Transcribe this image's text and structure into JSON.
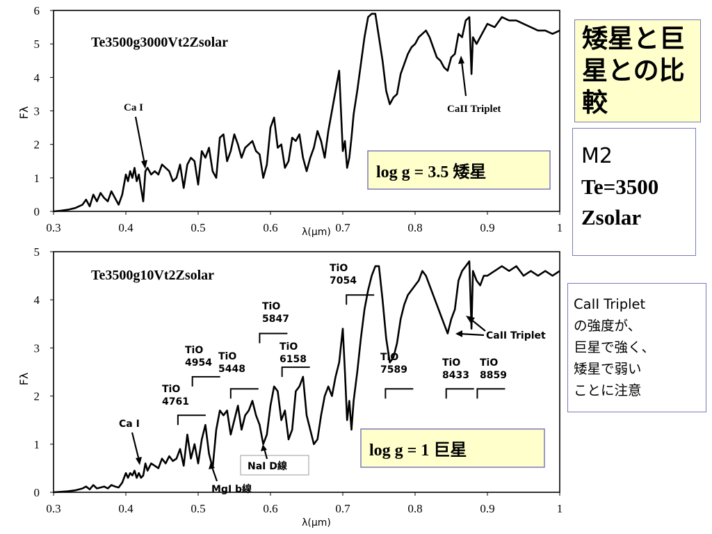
{
  "sidebar": {
    "title_lines": [
      "矮星と巨",
      "星との比",
      "較"
    ],
    "info_lines": [
      "M2",
      "Te=3500",
      "Zsolar"
    ],
    "note_lines": [
      "CaII  Triplet",
      "の強度が、",
      "巨星で強く、",
      "矮星で弱い",
      "ことに注意"
    ]
  },
  "colors": {
    "title_bg": "#ffffcc",
    "box_border": "#7a78b8",
    "line": "#000000"
  },
  "chart_data": [
    {
      "type": "line",
      "title": "Te3500g3000Vt2Zsolar",
      "xlabel": "λ(μm)",
      "ylabel": "Fλ",
      "xlim": [
        0.3,
        1.0
      ],
      "ylim": [
        0,
        6
      ],
      "xticks": [
        "0.3",
        "0.4",
        "0.5",
        "0.6",
        "0.7",
        "0.8",
        "0.9",
        "1"
      ],
      "yticks": [
        "0",
        "1",
        "2",
        "3",
        "4",
        "5",
        "6"
      ],
      "grid": false,
      "badge": "log g = 3.5  矮星",
      "annotations": [
        {
          "text": "Ca I",
          "x": 0.43,
          "y": 1.35
        },
        {
          "text": "CaII Triplet",
          "x": 0.87,
          "y": 4.4
        }
      ],
      "series": [
        {
          "x": [
            0.3,
            0.31,
            0.32,
            0.33,
            0.34,
            0.345,
            0.35,
            0.355,
            0.36,
            0.365,
            0.37,
            0.375,
            0.38,
            0.385,
            0.39,
            0.395,
            0.4,
            0.403,
            0.406,
            0.409,
            0.412,
            0.415,
            0.418,
            0.421,
            0.424,
            0.427,
            0.43,
            0.435,
            0.44,
            0.445,
            0.45,
            0.455,
            0.46,
            0.465,
            0.47,
            0.475,
            0.48,
            0.485,
            0.49,
            0.495,
            0.5,
            0.505,
            0.51,
            0.515,
            0.52,
            0.525,
            0.53,
            0.535,
            0.54,
            0.545,
            0.55,
            0.555,
            0.56,
            0.565,
            0.57,
            0.575,
            0.58,
            0.585,
            0.59,
            0.595,
            0.6,
            0.605,
            0.61,
            0.615,
            0.62,
            0.625,
            0.63,
            0.635,
            0.64,
            0.645,
            0.65,
            0.655,
            0.66,
            0.665,
            0.67,
            0.675,
            0.68,
            0.685,
            0.69,
            0.695,
            0.7,
            0.703,
            0.706,
            0.709,
            0.712,
            0.715,
            0.72,
            0.725,
            0.73,
            0.735,
            0.74,
            0.745,
            0.75,
            0.755,
            0.76,
            0.765,
            0.77,
            0.775,
            0.78,
            0.785,
            0.79,
            0.795,
            0.8,
            0.805,
            0.81,
            0.815,
            0.82,
            0.825,
            0.83,
            0.835,
            0.84,
            0.845,
            0.85,
            0.855,
            0.86,
            0.865,
            0.87,
            0.875,
            0.878,
            0.88,
            0.885,
            0.89,
            0.895,
            0.9,
            0.91,
            0.92,
            0.93,
            0.94,
            0.95,
            0.96,
            0.97,
            0.98,
            0.99,
            1.0
          ],
          "y": [
            0.0,
            0.02,
            0.05,
            0.1,
            0.2,
            0.35,
            0.15,
            0.5,
            0.3,
            0.55,
            0.4,
            0.3,
            0.6,
            0.4,
            0.2,
            0.5,
            1.1,
            0.9,
            1.2,
            1.0,
            1.3,
            0.9,
            1.1,
            0.7,
            0.3,
            1.2,
            1.3,
            1.1,
            1.2,
            1.1,
            1.4,
            1.3,
            1.2,
            0.9,
            1.0,
            1.4,
            0.7,
            1.4,
            1.6,
            1.5,
            0.8,
            1.8,
            1.6,
            1.9,
            1.2,
            1.0,
            2.2,
            2.3,
            1.5,
            1.8,
            2.3,
            2.0,
            1.6,
            1.9,
            2.0,
            2.1,
            1.8,
            1.7,
            1.0,
            1.4,
            2.5,
            2.8,
            1.9,
            2.0,
            1.3,
            1.5,
            2.2,
            2.1,
            2.3,
            1.6,
            1.2,
            1.6,
            1.9,
            2.4,
            2.1,
            1.6,
            2.4,
            3.0,
            3.6,
            4.2,
            1.8,
            2.1,
            1.3,
            1.6,
            2.2,
            2.9,
            3.6,
            4.4,
            5.2,
            5.8,
            5.9,
            5.9,
            5.2,
            4.5,
            3.6,
            3.2,
            3.4,
            3.5,
            4.1,
            4.4,
            4.7,
            4.9,
            5.0,
            5.2,
            5.3,
            5.4,
            5.2,
            4.9,
            4.6,
            4.5,
            4.3,
            4.2,
            4.6,
            4.7,
            5.3,
            5.2,
            5.7,
            5.8,
            4.1,
            5.2,
            5.0,
            5.2,
            5.4,
            5.6,
            5.5,
            5.8,
            5.7,
            5.7,
            5.6,
            5.5,
            5.4,
            5.4,
            5.3,
            5.4
          ]
        }
      ]
    },
    {
      "type": "line",
      "title": "Te3500g10Vt2Zsolar",
      "xlabel": "λ(μm)",
      "ylabel": "Fλ",
      "xlim": [
        0.3,
        1.0
      ],
      "ylim": [
        0,
        5
      ],
      "xticks": [
        "0.3",
        "0.4",
        "0.5",
        "0.6",
        "0.7",
        "0.8",
        "0.9",
        "1"
      ],
      "yticks": [
        "0",
        "1",
        "2",
        "3",
        "4",
        "5"
      ],
      "grid": false,
      "badge": "log g = 1  巨星",
      "band_labels": [
        {
          "text": [
            "TiO",
            "4761"
          ],
          "edge": 0.472,
          "level": 1.6
        },
        {
          "text": [
            "TiO",
            "4954"
          ],
          "edge": 0.492,
          "level": 2.4
        },
        {
          "text": [
            "TiO",
            "5448"
          ],
          "edge": 0.545,
          "level": 2.15
        },
        {
          "text": [
            "TiO",
            "5847"
          ],
          "edge": 0.585,
          "level": 3.3
        },
        {
          "text": [
            "TiO",
            "6158"
          ],
          "edge": 0.616,
          "level": 2.6
        },
        {
          "text": [
            "TiO",
            "7054"
          ],
          "edge": 0.705,
          "level": 4.1
        },
        {
          "text": [
            "TiO",
            "7589"
          ],
          "edge": 0.759,
          "level": 2.15
        },
        {
          "text": [
            "TiO",
            "8433"
          ],
          "edge": 0.843,
          "level": 2.15
        },
        {
          "text": [
            "TiO",
            "8859"
          ],
          "edge": 0.886,
          "level": 2.15
        }
      ],
      "annotations": [
        {
          "text": "Ca I",
          "x": 0.42,
          "y": 0.55
        },
        {
          "text": "MgI  b線",
          "x": 0.517,
          "y": 0.55
        },
        {
          "text": "NaI  D線",
          "x": 0.589,
          "y": 0.92
        },
        {
          "text": "CaII Triplet",
          "x": 0.866,
          "y": 3.3
        }
      ],
      "series": [
        {
          "x": [
            0.3,
            0.31,
            0.32,
            0.33,
            0.34,
            0.345,
            0.35,
            0.355,
            0.36,
            0.365,
            0.37,
            0.375,
            0.38,
            0.385,
            0.39,
            0.395,
            0.4,
            0.403,
            0.406,
            0.409,
            0.412,
            0.415,
            0.418,
            0.421,
            0.424,
            0.427,
            0.43,
            0.435,
            0.44,
            0.445,
            0.45,
            0.455,
            0.46,
            0.465,
            0.47,
            0.475,
            0.48,
            0.485,
            0.49,
            0.495,
            0.5,
            0.505,
            0.51,
            0.515,
            0.52,
            0.525,
            0.53,
            0.535,
            0.54,
            0.545,
            0.55,
            0.555,
            0.56,
            0.565,
            0.57,
            0.575,
            0.58,
            0.585,
            0.59,
            0.595,
            0.6,
            0.605,
            0.61,
            0.615,
            0.62,
            0.625,
            0.63,
            0.635,
            0.64,
            0.645,
            0.65,
            0.655,
            0.66,
            0.665,
            0.67,
            0.675,
            0.68,
            0.685,
            0.69,
            0.695,
            0.7,
            0.703,
            0.706,
            0.709,
            0.712,
            0.715,
            0.72,
            0.725,
            0.73,
            0.735,
            0.74,
            0.745,
            0.75,
            0.755,
            0.76,
            0.765,
            0.77,
            0.775,
            0.78,
            0.785,
            0.79,
            0.795,
            0.8,
            0.805,
            0.81,
            0.815,
            0.82,
            0.825,
            0.83,
            0.835,
            0.84,
            0.845,
            0.85,
            0.855,
            0.86,
            0.865,
            0.87,
            0.875,
            0.878,
            0.88,
            0.885,
            0.89,
            0.895,
            0.9,
            0.91,
            0.92,
            0.93,
            0.94,
            0.95,
            0.96,
            0.97,
            0.98,
            0.99,
            1.0
          ],
          "y": [
            0.0,
            0.01,
            0.02,
            0.04,
            0.08,
            0.12,
            0.06,
            0.15,
            0.08,
            0.1,
            0.12,
            0.08,
            0.15,
            0.12,
            0.1,
            0.2,
            0.4,
            0.3,
            0.4,
            0.35,
            0.45,
            0.3,
            0.4,
            0.3,
            0.35,
            0.6,
            0.45,
            0.6,
            0.55,
            0.5,
            0.7,
            0.6,
            0.75,
            0.65,
            0.7,
            0.9,
            0.55,
            1.2,
            0.7,
            1.0,
            0.6,
            1.1,
            1.4,
            0.8,
            0.5,
            1.3,
            1.7,
            1.6,
            1.7,
            1.2,
            1.5,
            1.8,
            1.3,
            1.6,
            1.7,
            1.9,
            1.6,
            1.4,
            1.0,
            1.2,
            1.8,
            2.2,
            2.1,
            1.5,
            1.7,
            1.1,
            1.3,
            2.1,
            2.2,
            2.4,
            1.6,
            1.3,
            1.0,
            1.1,
            1.6,
            2.0,
            2.2,
            2.0,
            2.4,
            2.7,
            3.4,
            2.5,
            1.5,
            1.9,
            1.3,
            1.9,
            2.5,
            3.2,
            3.8,
            4.2,
            4.5,
            4.7,
            4.7,
            4.0,
            3.2,
            2.7,
            2.8,
            3.1,
            3.6,
            3.9,
            4.1,
            4.2,
            4.3,
            4.4,
            4.6,
            4.5,
            4.3,
            4.1,
            3.9,
            3.7,
            3.5,
            3.3,
            3.6,
            3.8,
            4.4,
            4.6,
            4.7,
            4.8,
            3.4,
            4.6,
            4.4,
            4.3,
            4.5,
            4.5,
            4.6,
            4.7,
            4.6,
            4.7,
            4.5,
            4.6,
            4.5,
            4.6,
            4.5,
            4.6
          ]
        }
      ]
    }
  ]
}
